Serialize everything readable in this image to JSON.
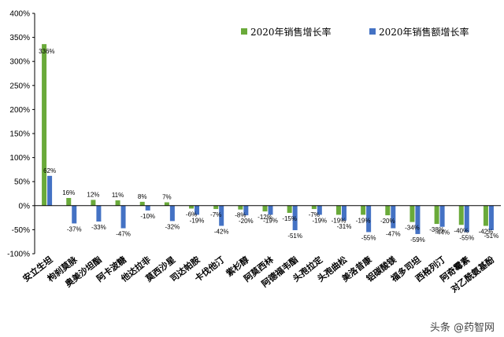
{
  "chart_data": {
    "type": "bar",
    "categories": [
      "安立生坦",
      "枸刹莫脉",
      "奥美沙坦酯",
      "阿卡波糖",
      "他达拉非",
      "莫西沙星",
      "司达帕胺",
      "卡伐他汀",
      "紫杉醇",
      "阿莫西林",
      "阿德福韦酯",
      "头孢拉定",
      "头孢曲松",
      "美洛昔康",
      "铝碳酸镁",
      "福多司坦",
      "西格列汀",
      "阿奇霉素",
      "对乙酰氨基酚"
    ],
    "series": [
      {
        "name": "2020年销售增长率",
        "color": "#6aaa3a",
        "values": [
          336,
          16,
          12,
          11,
          8,
          7,
          -6,
          -7,
          -8,
          -12,
          -15,
          -7,
          -19,
          -19,
          -20,
          -34,
          -38,
          -40,
          -42
        ],
        "labels": [
          "336%",
          "16%",
          "12%",
          "11%",
          "8%",
          "7%",
          "-6%",
          "-7%",
          "-8%",
          "-12%",
          "-15%",
          "-7%",
          "-19%",
          "-19%",
          "-20%",
          "-34%",
          "-38%",
          "-40%",
          "-42%"
        ]
      },
      {
        "name": "2020年销售额增长率",
        "color": "#4472c4",
        "values": [
          62,
          -37,
          -33,
          -47,
          -10,
          -32,
          -19,
          -42,
          -20,
          -19,
          -51,
          -19,
          -31,
          -55,
          -47,
          -59,
          -44,
          -55,
          -51
        ],
        "labels": [
          "62%",
          "-37%",
          "-33%",
          "-47%",
          "-10%",
          "-32%",
          "-19%",
          "-42%",
          "-20%",
          "-19%",
          "-51%",
          "-19%",
          "-31%",
          "-55%",
          "-47%",
          "-59%",
          "-44%",
          "-55%",
          "-51%"
        ]
      }
    ],
    "ylim": [
      -100,
      400
    ],
    "yticks": [
      "-100%",
      "-50%",
      "0%",
      "50%",
      "100%",
      "150%",
      "200%",
      "250%",
      "300%",
      "350%",
      "400%"
    ],
    "legend_position": "top-right",
    "grid": false
  },
  "watermark": "头条 @药智网"
}
